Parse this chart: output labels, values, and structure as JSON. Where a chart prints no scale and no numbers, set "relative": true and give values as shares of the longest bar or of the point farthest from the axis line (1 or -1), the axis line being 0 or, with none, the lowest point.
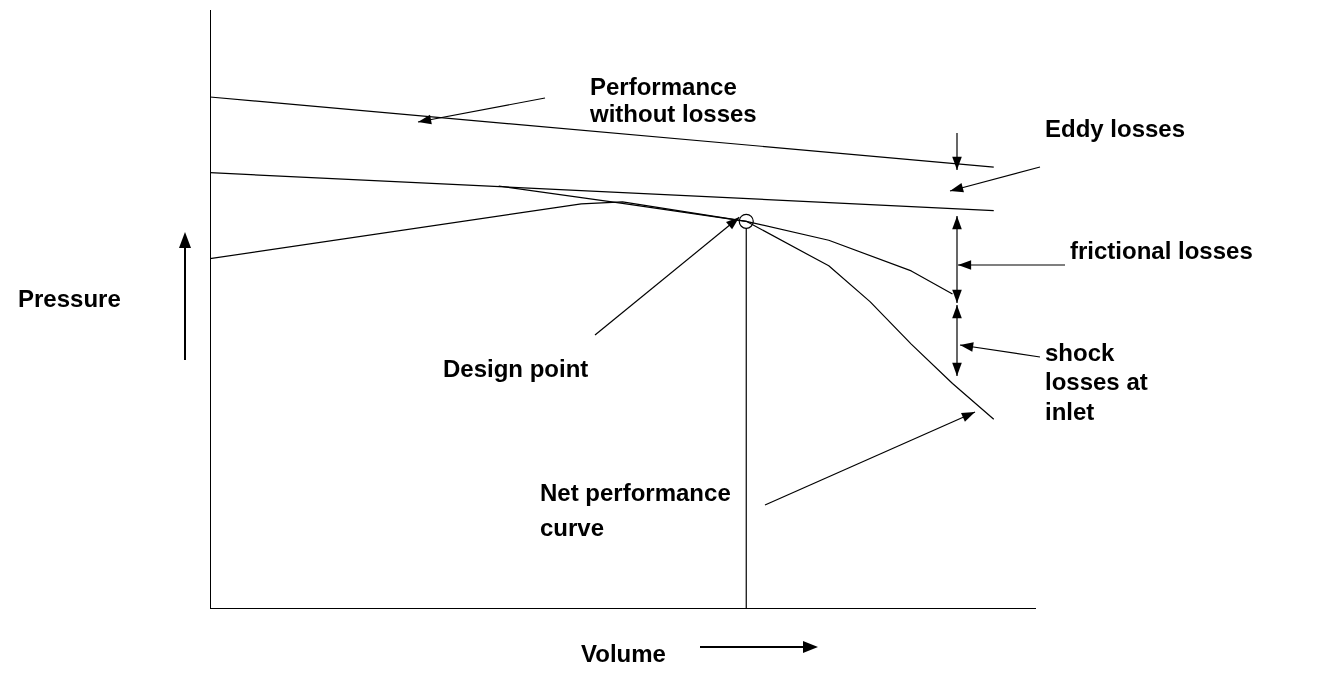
{
  "chart_data": {
    "type": "line",
    "relative": true,
    "xlabel": "Volume",
    "ylabel": "Pressure",
    "grid": false,
    "legend": false,
    "marker": "none",
    "line_style": "solid",
    "categories": [
      null,
      null,
      null,
      null,
      null,
      null,
      null,
      null,
      null,
      null,
      null,
      null,
      null,
      null,
      null,
      null,
      null,
      null,
      null,
      null,
      null
    ],
    "series": [
      {
        "color": "#000000",
        "values": [
          1,
          null,
          null,
          null,
          null,
          null,
          null,
          null,
          null,
          null,
          null,
          null,
          null,
          null,
          null,
          null,
          null,
          null,
          null,
          0.863,
          null
        ]
      },
      {
        "color": "#000000",
        "values": [
          0.852,
          null,
          null,
          null,
          null,
          null,
          null,
          null,
          null,
          null,
          null,
          null,
          null,
          null,
          null,
          null,
          null,
          null,
          null,
          0.778,
          null
        ]
      },
      {
        "color": "#000000",
        "values": [
          0.684,
          null,
          null,
          null,
          null,
          null,
          null,
          null,
          null,
          0.791,
          0.795,
          null,
          null,
          0.757,
          null,
          0.67,
          0.6,
          0.517,
          0.44,
          0.37,
          null
        ]
      },
      {
        "color": "#000000",
        "values": [
          null,
          null,
          null,
          null,
          null,
          null,
          null,
          0.826,
          null,
          null,
          0.792,
          null,
          null,
          0.757,
          null,
          0.72,
          null,
          0.66,
          0.615,
          null,
          null
        ]
      }
    ],
    "annotations": [
      "Performance without losses",
      "Eddy losses",
      "frictional losses",
      "shock losses at inlet",
      "Design point",
      "Net performance curve"
    ]
  }
}
